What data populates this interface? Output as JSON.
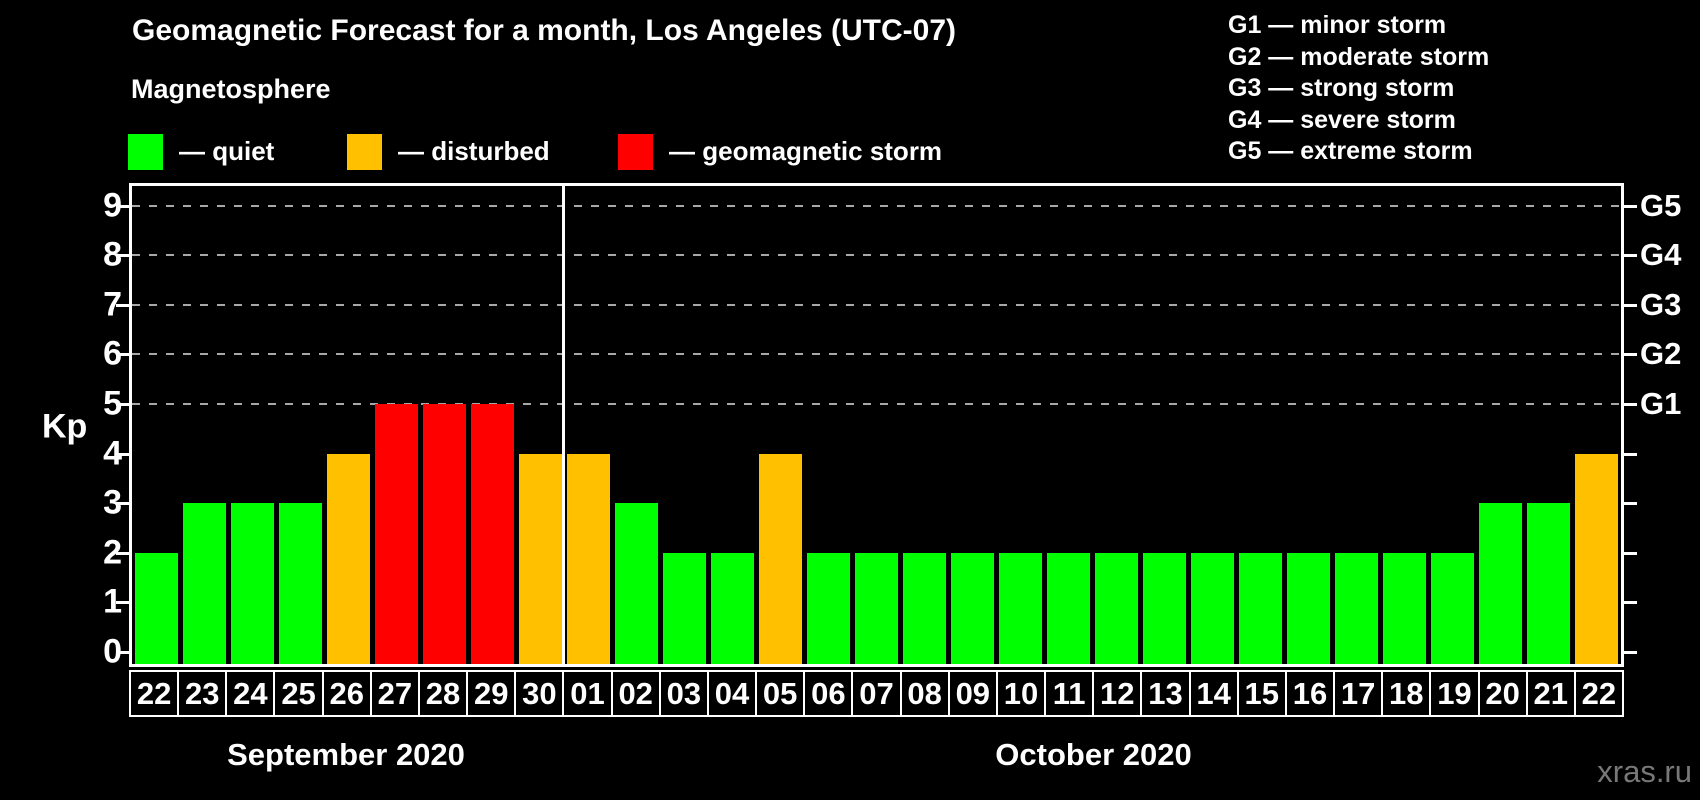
{
  "header": {
    "title": "Geomagnetic Forecast for a month, Los Angeles (UTC-07)",
    "subtitle": "Magnetosphere"
  },
  "legend": {
    "items": [
      {
        "name": "quiet",
        "label": "— quiet",
        "color": "#00ff00"
      },
      {
        "name": "disturbed",
        "label": "— disturbed",
        "color": "#ffc000"
      },
      {
        "name": "storm",
        "label": "— geomagnetic storm",
        "color": "#ff0000"
      }
    ]
  },
  "g_legend": {
    "lines": [
      "G1 — minor storm",
      "G2 — moderate storm",
      "G3 — strong storm",
      "G4 — severe storm",
      "G5 — extreme storm"
    ]
  },
  "watermark": "xras.ru",
  "chart_data": {
    "type": "bar",
    "title": "Geomagnetic Forecast for a month, Los Angeles (UTC-07)",
    "ylabel": "Kp",
    "ylim": [
      0,
      9
    ],
    "y_ticks": [
      0,
      1,
      2,
      3,
      4,
      5,
      6,
      7,
      8,
      9
    ],
    "dashed_gridlines_at_kp": [
      5,
      6,
      7,
      8,
      9
    ],
    "grid": "dashed horizontal at storm levels only",
    "right_axis_labels": [
      {
        "label": "G5",
        "kp": 9
      },
      {
        "label": "G4",
        "kp": 8
      },
      {
        "label": "G3",
        "kp": 7
      },
      {
        "label": "G2",
        "kp": 6
      },
      {
        "label": "G1",
        "kp": 5
      }
    ],
    "status_colors": {
      "quiet": "#00ff00",
      "disturbed": "#ffc000",
      "storm": "#ff0000"
    },
    "months": [
      {
        "label": "September 2020",
        "bars": [
          {
            "day": "22",
            "kp": 2,
            "status": "quiet"
          },
          {
            "day": "23",
            "kp": 3,
            "status": "quiet"
          },
          {
            "day": "24",
            "kp": 3,
            "status": "quiet"
          },
          {
            "day": "25",
            "kp": 3,
            "status": "quiet"
          },
          {
            "day": "26",
            "kp": 4,
            "status": "disturbed"
          },
          {
            "day": "27",
            "kp": 5,
            "status": "storm"
          },
          {
            "day": "28",
            "kp": 5,
            "status": "storm"
          },
          {
            "day": "29",
            "kp": 5,
            "status": "storm"
          },
          {
            "day": "30",
            "kp": 4,
            "status": "disturbed"
          }
        ]
      },
      {
        "label": "October 2020",
        "bars": [
          {
            "day": "01",
            "kp": 4,
            "status": "disturbed"
          },
          {
            "day": "02",
            "kp": 3,
            "status": "quiet"
          },
          {
            "day": "03",
            "kp": 2,
            "status": "quiet"
          },
          {
            "day": "04",
            "kp": 2,
            "status": "quiet"
          },
          {
            "day": "05",
            "kp": 4,
            "status": "disturbed"
          },
          {
            "day": "06",
            "kp": 2,
            "status": "quiet"
          },
          {
            "day": "07",
            "kp": 2,
            "status": "quiet"
          },
          {
            "day": "08",
            "kp": 2,
            "status": "quiet"
          },
          {
            "day": "09",
            "kp": 2,
            "status": "quiet"
          },
          {
            "day": "10",
            "kp": 2,
            "status": "quiet"
          },
          {
            "day": "11",
            "kp": 2,
            "status": "quiet"
          },
          {
            "day": "12",
            "kp": 2,
            "status": "quiet"
          },
          {
            "day": "13",
            "kp": 2,
            "status": "quiet"
          },
          {
            "day": "14",
            "kp": 2,
            "status": "quiet"
          },
          {
            "day": "15",
            "kp": 2,
            "status": "quiet"
          },
          {
            "day": "16",
            "kp": 2,
            "status": "quiet"
          },
          {
            "day": "17",
            "kp": 2,
            "status": "quiet"
          },
          {
            "day": "18",
            "kp": 2,
            "status": "quiet"
          },
          {
            "day": "19",
            "kp": 2,
            "status": "quiet"
          },
          {
            "day": "20",
            "kp": 3,
            "status": "quiet"
          },
          {
            "day": "21",
            "kp": 3,
            "status": "quiet"
          },
          {
            "day": "22",
            "kp": 4,
            "status": "disturbed"
          }
        ]
      }
    ]
  }
}
